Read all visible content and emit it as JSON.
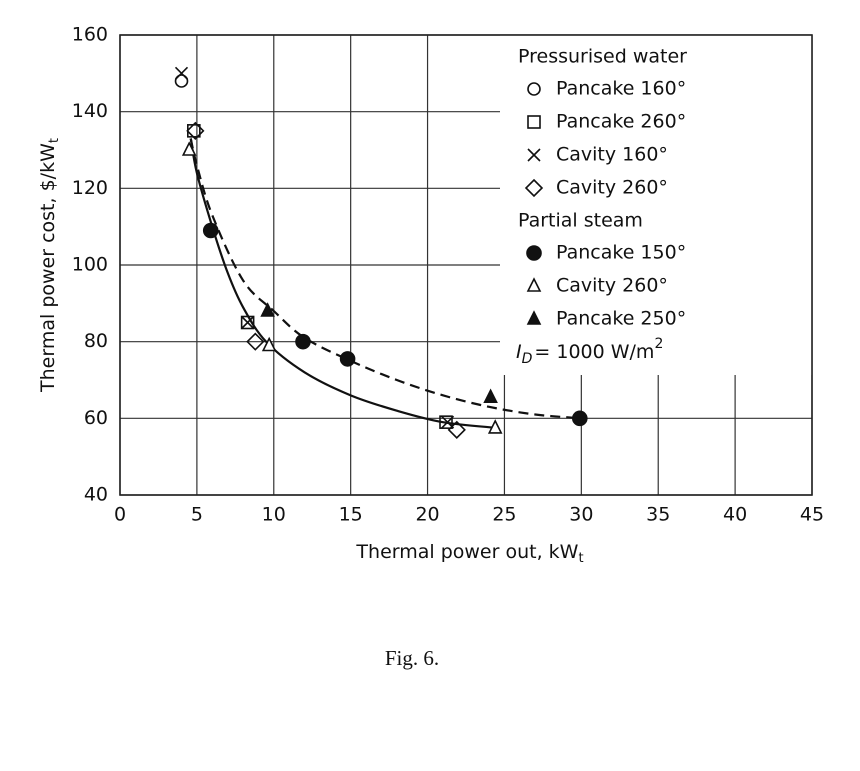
{
  "chart_data": {
    "type": "scatter",
    "xlabel": "Thermal power out, kW",
    "xlabel_sub": "t",
    "ylabel": "Thermal power cost, $/kW",
    "ylabel_sub": "t",
    "xlim": [
      0,
      45
    ],
    "ylim": [
      40,
      160
    ],
    "xticks": [
      0,
      5,
      10,
      15,
      20,
      25,
      30,
      35,
      40,
      45
    ],
    "yticks": [
      40,
      60,
      80,
      100,
      120,
      140,
      160
    ],
    "grid": true,
    "legend": "upper right",
    "color": "#111111",
    "groups": [
      {
        "title": "Pressurised water",
        "series": [
          {
            "name": "Pancake 160°",
            "marker": "o",
            "x": [
              4
            ],
            "y": [
              148
            ]
          },
          {
            "name": "Pancake 260°",
            "marker": "s",
            "x": [
              4.8,
              8.3,
              21.2
            ],
            "y": [
              135,
              85,
              59
            ]
          },
          {
            "name": "Cavity 160°",
            "marker": "x",
            "x": [
              4,
              8.3,
              21.3
            ],
            "y": [
              150,
              85,
              59
            ]
          },
          {
            "name": "Cavity 260°",
            "marker": "D",
            "x": [
              4.9,
              8.8,
              21.9
            ],
            "y": [
              135,
              80,
              57
            ]
          }
        ]
      },
      {
        "title": "Partial steam",
        "series": [
          {
            "name": "Pancake 150°",
            "marker": "filled-o",
            "x": [
              5.9,
              11.9,
              14.8,
              29.9
            ],
            "y": [
              109,
              80,
              75.5,
              60
            ]
          },
          {
            "name": "Cavity 260°",
            "marker": "^",
            "x": [
              4.5,
              9.7,
              24.4
            ],
            "y": [
              130,
              79,
              57.5
            ]
          },
          {
            "name": "Pancake 250°",
            "marker": "filled-^",
            "x": [
              9.6,
              24.1
            ],
            "y": [
              88,
              65.5
            ]
          }
        ]
      }
    ],
    "curves": [
      {
        "style": "solid",
        "x": [
          4.6,
          5,
          6,
          7,
          8,
          9.5,
          12,
          15,
          18,
          21,
          24.5
        ],
        "y": [
          133,
          124,
          110,
          98,
          89,
          80,
          72,
          66,
          62,
          59,
          57.5
        ]
      },
      {
        "style": "dashed",
        "x": [
          4.6,
          5,
          6,
          8,
          10,
          12,
          15,
          18,
          21,
          24,
          27,
          30
        ],
        "y": [
          133,
          126,
          113,
          96,
          88,
          81,
          75,
          70,
          66,
          63,
          61,
          60
        ]
      }
    ],
    "annotation": {
      "text": "I",
      "sub": "D",
      "rest": "= 1000 W/m",
      "sup": "2"
    }
  },
  "caption": "Fig. 6."
}
